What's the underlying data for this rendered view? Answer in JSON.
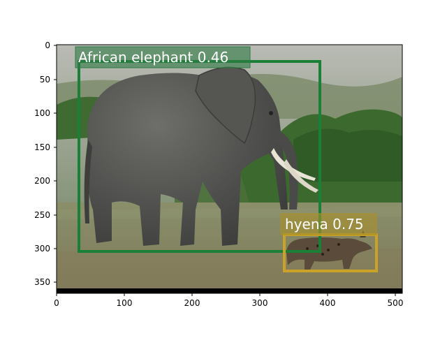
{
  "figure": {
    "x_ticks": [
      "0",
      "100",
      "200",
      "300",
      "400",
      "500"
    ],
    "y_ticks": [
      "0",
      "50",
      "100",
      "150",
      "200",
      "250",
      "300",
      "350"
    ]
  },
  "detections": [
    {
      "label": "African elephant",
      "score": "0.46",
      "text": "African elephant 0.46",
      "color": "#1a7f37"
    },
    {
      "label": "hyena",
      "score": "0.75",
      "text": "hyena 0.75",
      "color": "#c9a227"
    }
  ],
  "scene": {
    "elements": [
      "elephant",
      "hyena",
      "grass",
      "bushes",
      "sky"
    ]
  }
}
